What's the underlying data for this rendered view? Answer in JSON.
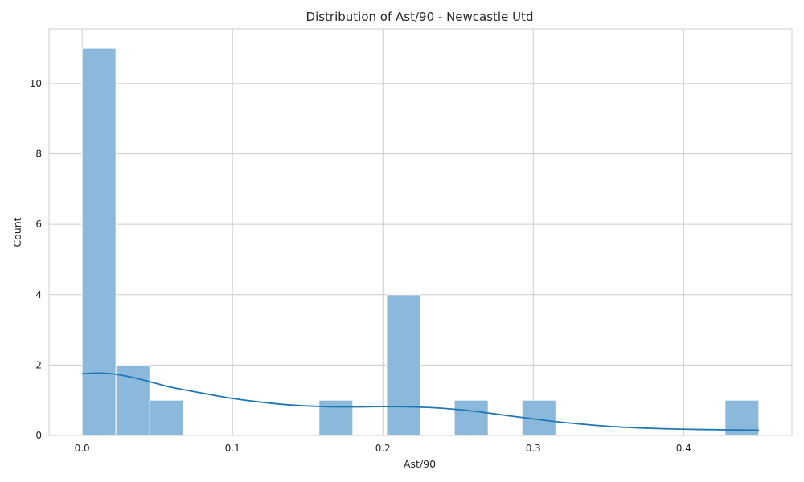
{
  "chart_data": {
    "type": "bar",
    "title": "Distribution of Ast/90 - Newcastle Utd",
    "xlabel": "Ast/90",
    "ylabel": "Count",
    "xlim": [
      -0.022,
      0.472
    ],
    "ylim": [
      0,
      11.55
    ],
    "xticks": [
      0.0,
      0.1,
      0.2,
      0.3,
      0.4
    ],
    "xtick_labels": [
      "0.0",
      "0.1",
      "0.2",
      "0.3",
      "0.4"
    ],
    "yticks": [
      0,
      2,
      4,
      6,
      8,
      10
    ],
    "ytick_labels": [
      "0",
      "2",
      "4",
      "6",
      "8",
      "10"
    ],
    "grid": true,
    "bins": [
      {
        "x0": 0.0,
        "x1": 0.0225,
        "count": 11
      },
      {
        "x0": 0.0225,
        "x1": 0.045,
        "count": 2
      },
      {
        "x0": 0.045,
        "x1": 0.0675,
        "count": 1
      },
      {
        "x0": 0.0675,
        "x1": 0.09,
        "count": 0
      },
      {
        "x0": 0.09,
        "x1": 0.1125,
        "count": 0
      },
      {
        "x0": 0.1125,
        "x1": 0.135,
        "count": 0
      },
      {
        "x0": 0.135,
        "x1": 0.1575,
        "count": 0
      },
      {
        "x0": 0.1575,
        "x1": 0.18,
        "count": 1
      },
      {
        "x0": 0.18,
        "x1": 0.2025,
        "count": 0
      },
      {
        "x0": 0.2025,
        "x1": 0.225,
        "count": 4
      },
      {
        "x0": 0.225,
        "x1": 0.2475,
        "count": 0
      },
      {
        "x0": 0.2475,
        "x1": 0.27,
        "count": 1
      },
      {
        "x0": 0.27,
        "x1": 0.2925,
        "count": 0
      },
      {
        "x0": 0.2925,
        "x1": 0.315,
        "count": 1
      },
      {
        "x0": 0.315,
        "x1": 0.3375,
        "count": 0
      },
      {
        "x0": 0.3375,
        "x1": 0.36,
        "count": 0
      },
      {
        "x0": 0.36,
        "x1": 0.3825,
        "count": 0
      },
      {
        "x0": 0.3825,
        "x1": 0.405,
        "count": 0
      },
      {
        "x0": 0.405,
        "x1": 0.4275,
        "count": 0
      },
      {
        "x0": 0.4275,
        "x1": 0.45,
        "count": 1
      }
    ],
    "kde": {
      "x": [
        0.0,
        0.01,
        0.02,
        0.03,
        0.04,
        0.05,
        0.06,
        0.08,
        0.1,
        0.12,
        0.14,
        0.16,
        0.18,
        0.2,
        0.22,
        0.24,
        0.26,
        0.28,
        0.3,
        0.32,
        0.35,
        0.38,
        0.41,
        0.45
      ],
      "y": [
        1.75,
        1.77,
        1.75,
        1.68,
        1.58,
        1.47,
        1.36,
        1.2,
        1.05,
        0.94,
        0.86,
        0.82,
        0.81,
        0.82,
        0.81,
        0.77,
        0.69,
        0.58,
        0.47,
        0.37,
        0.26,
        0.2,
        0.17,
        0.15
      ]
    },
    "colors": {
      "bar_fill": "#8bb9db",
      "bar_stroke": "#ffffff",
      "kde_line": "#1f77b4",
      "grid": "#cccccc",
      "axes_border": "#cccccc",
      "text": "#262626"
    }
  }
}
